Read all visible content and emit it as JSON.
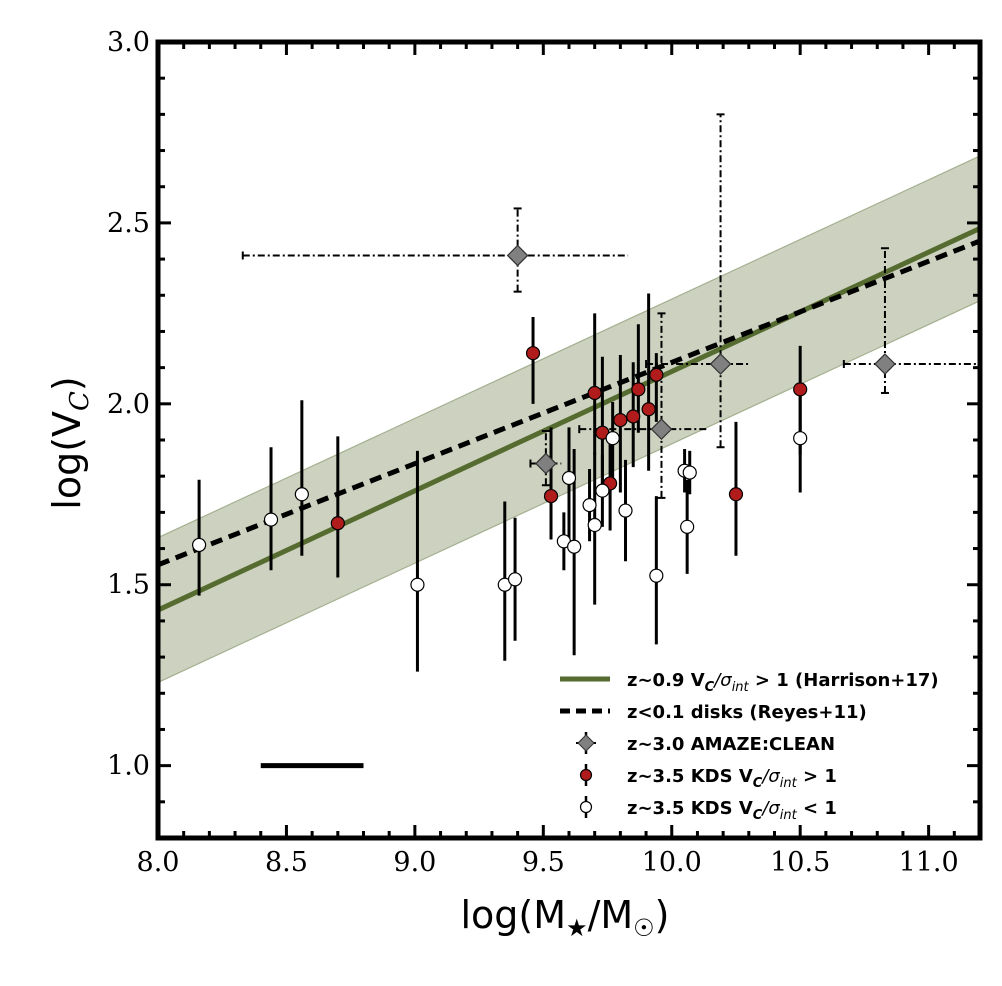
{
  "chart_data": {
    "type": "scatter",
    "xlim": [
      8.0,
      11.2
    ],
    "ylim": [
      0.8,
      3.0
    ],
    "xlabel": "log(M★/M☉)",
    "ylabel": "log(V_C)",
    "x_ticks": [
      "8.0",
      "8.5",
      "9.0",
      "9.5",
      "10.0",
      "10.5",
      "11.0"
    ],
    "y_ticks": [
      "1.0",
      "1.5",
      "2.0",
      "2.5",
      "3.0"
    ],
    "grid": false,
    "legend_position": "bottom-right",
    "colors": {
      "green_line": "#556b2f",
      "band_fill": "#c3cab4",
      "band_edge": "#a3b08f",
      "red_marker": "#b01c1c",
      "grey_marker": "#808080"
    },
    "fits": [
      {
        "name": "z∼0.9 V_C/σ_int > 1 (Harrison+17)",
        "style": "solid",
        "color": "#556b2f",
        "x": [
          8.0,
          11.2
        ],
        "y": [
          1.43,
          2.485
        ],
        "band_y_low": [
          1.23,
          2.285
        ],
        "band_y_high": [
          1.63,
          2.685
        ]
      },
      {
        "name": "z<0.1 disks (Reyes+11)",
        "style": "dashed",
        "color": "#000000",
        "x": [
          8.0,
          11.2
        ],
        "y": [
          1.555,
          2.45
        ]
      }
    ],
    "scale_bar": {
      "x": [
        8.4,
        8.8
      ],
      "y": 1.0
    },
    "series": [
      {
        "name": "z∼3.0 AMAZE:CLEAN",
        "marker": "diamond",
        "color": "#808080",
        "points": [
          {
            "x": 9.4,
            "y": 2.41,
            "xerr": [
              1.07,
              0.43
            ],
            "yerr": [
              0.1,
              0.13
            ]
          },
          {
            "x": 10.19,
            "y": 2.11,
            "xerr": [
              0.29,
              0.11
            ],
            "yerr": [
              0.23,
              0.69
            ]
          },
          {
            "x": 9.96,
            "y": 1.93,
            "xerr": [
              0.32,
              0.18
            ],
            "yerr": [
              0.19,
              0.32
            ]
          },
          {
            "x": 9.51,
            "y": 1.835,
            "xerr": [
              0.06,
              0.06
            ],
            "yerr": [
              0.06,
              0.09
            ]
          },
          {
            "x": 10.83,
            "y": 2.11,
            "xerr": [
              0.16,
              0.37
            ],
            "yerr": [
              0.08,
              0.32
            ]
          }
        ]
      },
      {
        "name": "z∼3.5 KDS V_C/σ_int > 1",
        "marker": "circle",
        "color": "#b01c1c",
        "points": [
          {
            "x": 8.7,
            "y": 1.67,
            "yerr": [
              0.15,
              0.24
            ]
          },
          {
            "x": 9.46,
            "y": 2.14,
            "yerr": [
              0.14,
              0.1
            ]
          },
          {
            "x": 9.53,
            "y": 1.745,
            "yerr": [
              0.12,
              0.19
            ]
          },
          {
            "x": 9.7,
            "y": 2.03,
            "yerr": [
              0.17,
              0.22
            ]
          },
          {
            "x": 9.73,
            "y": 1.92,
            "yerr": [
              0.17,
              0.21
            ]
          },
          {
            "x": 9.76,
            "y": 1.78,
            "yerr": [
              0.13,
              0.14
            ]
          },
          {
            "x": 9.8,
            "y": 1.955,
            "yerr": [
              0.2,
              0.18
            ]
          },
          {
            "x": 9.85,
            "y": 1.965,
            "yerr": [
              0.14,
              0.15
            ]
          },
          {
            "x": 9.87,
            "y": 2.04,
            "yerr": [
              0.12,
              0.18
            ]
          },
          {
            "x": 9.91,
            "y": 1.985,
            "yerr": [
              0.17,
              0.32
            ]
          },
          {
            "x": 9.94,
            "y": 2.08,
            "yerr": [
              0.13,
              0.06
            ]
          },
          {
            "x": 10.25,
            "y": 1.75,
            "yerr": [
              0.17,
              0.2
            ]
          },
          {
            "x": 10.5,
            "y": 2.04,
            "yerr": [
              0.18,
              0.12
            ]
          }
        ]
      },
      {
        "name": "z∼3.5 KDS V_C/σ_int < 1",
        "marker": "circle",
        "color": "#ffffff",
        "points": [
          {
            "x": 8.16,
            "y": 1.61,
            "yerr": [
              0.14,
              0.18
            ]
          },
          {
            "x": 8.44,
            "y": 1.68,
            "yerr": [
              0.14,
              0.2
            ]
          },
          {
            "x": 8.56,
            "y": 1.75,
            "yerr": [
              0.17,
              0.26
            ]
          },
          {
            "x": 9.01,
            "y": 1.5,
            "yerr": [
              0.24,
              0.37
            ]
          },
          {
            "x": 9.35,
            "y": 1.5,
            "yerr": [
              0.21,
              0.23
            ]
          },
          {
            "x": 9.39,
            "y": 1.515,
            "yerr": [
              0.17,
              0.17
            ]
          },
          {
            "x": 9.58,
            "y": 1.62,
            "yerr": [
              0.08,
              0.08
            ]
          },
          {
            "x": 9.6,
            "y": 1.795,
            "yerr": [
              0.17,
              0.14
            ]
          },
          {
            "x": 9.62,
            "y": 1.605,
            "yerr": [
              0.3,
              0.27
            ]
          },
          {
            "x": 9.68,
            "y": 1.72,
            "yerr": [
              0.1,
              0.1
            ]
          },
          {
            "x": 9.7,
            "y": 1.665,
            "yerr": [
              0.22,
              0.2
            ]
          },
          {
            "x": 9.73,
            "y": 1.76,
            "yerr": [
              0.1,
              0.1
            ]
          },
          {
            "x": 9.77,
            "y": 1.905,
            "yerr": [
              0.11,
              0.1
            ]
          },
          {
            "x": 9.82,
            "y": 1.705,
            "yerr": [
              0.14,
              0.14
            ]
          },
          {
            "x": 9.94,
            "y": 1.525,
            "yerr": [
              0.19,
              0.22
            ]
          },
          {
            "x": 10.05,
            "y": 1.815,
            "yerr": [
              0.06,
              0.06
            ]
          },
          {
            "x": 10.06,
            "y": 1.66,
            "yerr": [
              0.13,
              0.13
            ]
          },
          {
            "x": 10.07,
            "y": 1.81,
            "yerr": [
              0.06,
              0.06
            ]
          },
          {
            "x": 10.5,
            "y": 1.905,
            "yerr": [
              0.15,
              0.15
            ]
          }
        ]
      }
    ]
  },
  "legend": [
    {
      "key": "green",
      "label": "z∼0.9 V_C/σ_int > 1 (Harrison+17)"
    },
    {
      "key": "dashed",
      "label": "z<0.1 disks (Reyes+11)"
    },
    {
      "key": "diamond",
      "label": "z∼3.0 AMAZE:CLEAN"
    },
    {
      "key": "red",
      "label": "z∼3.5 KDS V_C/σ_int > 1"
    },
    {
      "key": "white",
      "label": "z∼3.5 KDS V_C/σ_int < 1"
    }
  ]
}
